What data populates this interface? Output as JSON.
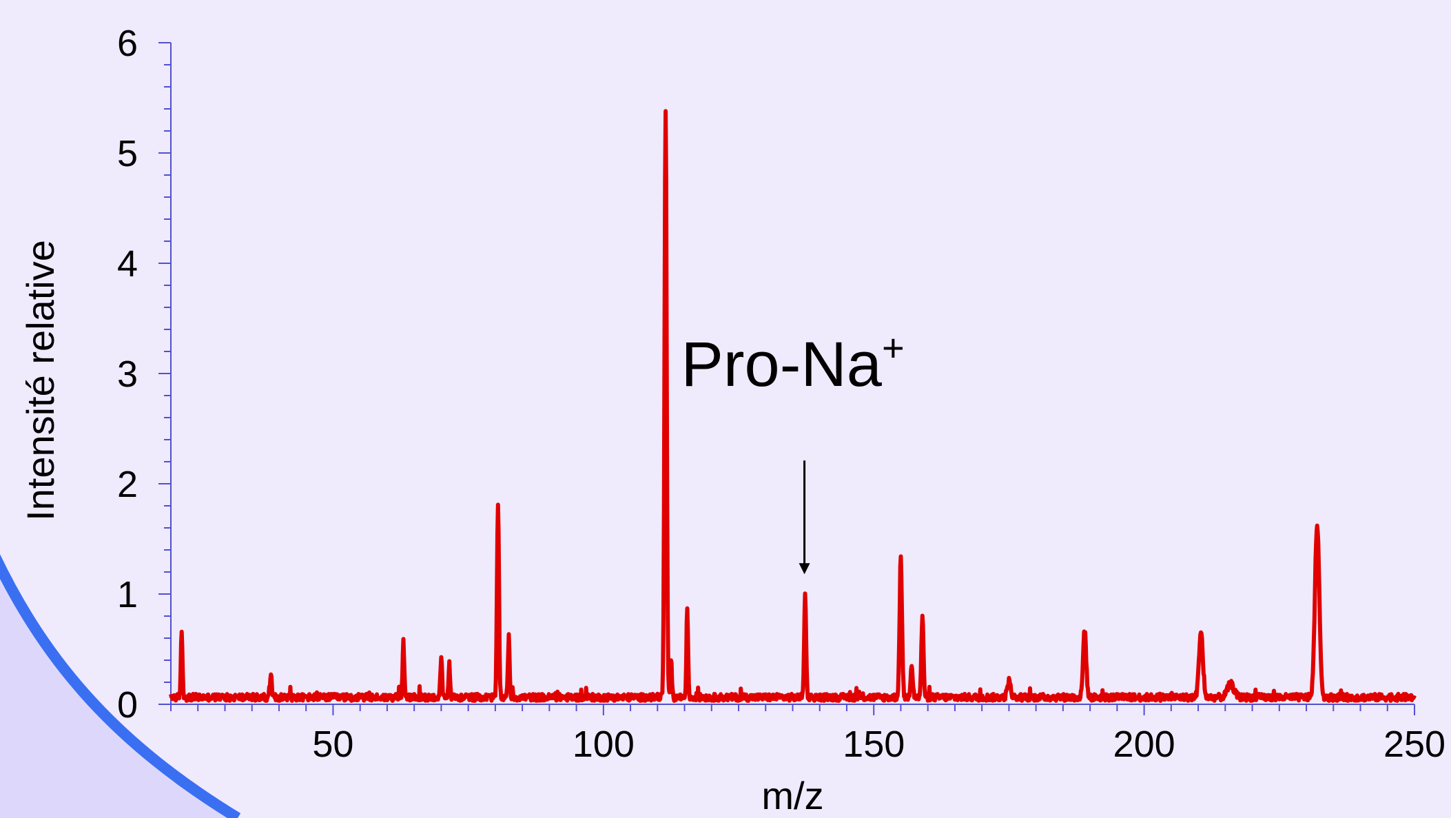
{
  "chart_data": {
    "type": "line",
    "title": "",
    "xlabel": "m/z",
    "ylabel": "Intensité relative",
    "xlim": [
      20,
      250
    ],
    "ylim": [
      0,
      6
    ],
    "x_ticks": [
      50,
      100,
      150,
      200,
      250
    ],
    "y_ticks": [
      0,
      1,
      2,
      3,
      4,
      5,
      6
    ],
    "grid": false,
    "colors": {
      "series": "#e00000",
      "axis": "#5050d0",
      "background": "#efeafc",
      "decor_arc": "#3a6ff2",
      "decor_fill": "#ddd8fb"
    },
    "baseline": 0.07,
    "peaks": [
      {
        "x": 22.0,
        "y": 0.58,
        "w": 0.15
      },
      {
        "x": 38.5,
        "y": 0.2,
        "w": 0.15
      },
      {
        "x": 63.0,
        "y": 0.52,
        "w": 0.15
      },
      {
        "x": 70.0,
        "y": 0.36,
        "w": 0.15
      },
      {
        "x": 71.5,
        "y": 0.3,
        "w": 0.15
      },
      {
        "x": 80.5,
        "y": 1.75,
        "w": 0.18
      },
      {
        "x": 82.5,
        "y": 0.55,
        "w": 0.15
      },
      {
        "x": 111.5,
        "y": 5.32,
        "w": 0.2
      },
      {
        "x": 112.5,
        "y": 0.35,
        "w": 0.15
      },
      {
        "x": 115.5,
        "y": 0.8,
        "w": 0.15
      },
      {
        "x": 137.3,
        "y": 0.93,
        "w": 0.18
      },
      {
        "x": 155.0,
        "y": 1.25,
        "w": 0.22
      },
      {
        "x": 157.0,
        "y": 0.3,
        "w": 0.2
      },
      {
        "x": 159.0,
        "y": 0.72,
        "w": 0.2
      },
      {
        "x": 175.0,
        "y": 0.15,
        "w": 0.3
      },
      {
        "x": 189.0,
        "y": 0.62,
        "w": 0.28
      },
      {
        "x": 210.5,
        "y": 0.6,
        "w": 0.35
      },
      {
        "x": 216.0,
        "y": 0.12,
        "w": 0.6
      },
      {
        "x": 232.0,
        "y": 1.58,
        "w": 0.4
      }
    ],
    "annotations": [
      {
        "text": "Pro-Na",
        "superscript": "+",
        "x": 137.3,
        "y": 0.93
      }
    ]
  }
}
